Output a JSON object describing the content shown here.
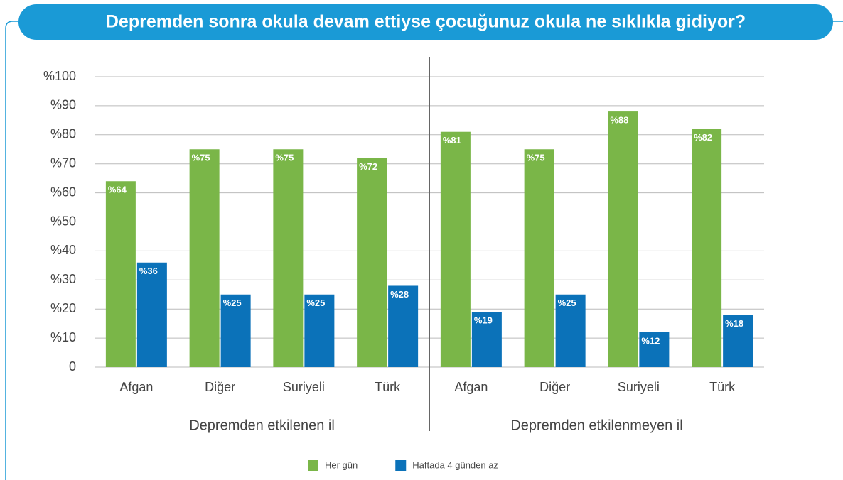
{
  "chart_data": {
    "type": "bar",
    "title": "Depremden sonra okula devam ettiyse çocuğunuz okula ne sıklıkla gidiyor?",
    "categories": [
      "Afgan",
      "Diğer",
      "Suriyeli",
      "Türk",
      "Afgan",
      "Diğer",
      "Suriyeli",
      "Türk"
    ],
    "groups": [
      "Depremden etkilenen il",
      "Depremden etkilenmeyen il"
    ],
    "series": [
      {
        "name": "Her gün",
        "color": "#7ab648",
        "values": [
          64,
          75,
          75,
          72,
          81,
          75,
          88,
          82
        ],
        "value_labels": [
          "%64",
          "%75",
          "%75",
          "%72",
          "%81",
          "%75",
          "%88",
          "%82"
        ]
      },
      {
        "name": "Haftada 4 günden az",
        "color": "#0b72b9",
        "values": [
          36,
          25,
          25,
          28,
          19,
          25,
          12,
          18
        ],
        "value_labels": [
          "%36",
          "%25",
          "%25",
          "%28",
          "%19",
          "%25",
          "%12",
          "%18"
        ]
      }
    ],
    "ylim": [
      0,
      100
    ],
    "yticks": [
      0,
      {
        "value": 10,
        "label": "%10"
      },
      {
        "value": 20,
        "label": "%20"
      },
      {
        "value": 30,
        "label": "%30"
      },
      {
        "value": 40,
        "label": "%40"
      },
      {
        "value": 50,
        "label": "%50"
      },
      {
        "value": 60,
        "label": "%60"
      },
      {
        "value": 70,
        "label": "%70"
      },
      {
        "value": 80,
        "label": "%80"
      },
      {
        "value": 90,
        "label": "%90"
      },
      {
        "value": 100,
        "label": "%100"
      }
    ],
    "grid": true,
    "legend": "bottom"
  }
}
